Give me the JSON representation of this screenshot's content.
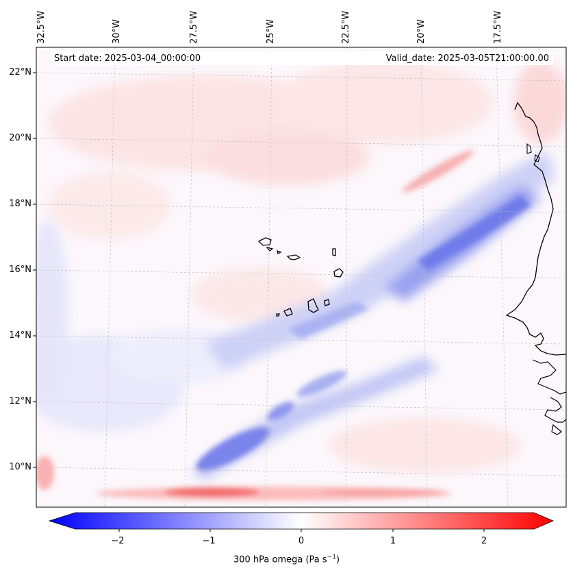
{
  "header": {
    "start_date": "Start date: 2025-03-04_00:00:00",
    "valid_date": "Valid_date: 2025-03-05T21:00:00.00"
  },
  "axes": {
    "top_lon_labels": [
      "32.5°W",
      "30°W",
      "27.5°W",
      "25°W",
      "22.5°W",
      "20°W",
      "17.5°W"
    ],
    "left_lat_labels": [
      "22°N",
      "20°N",
      "18°N",
      "16°N",
      "14°N",
      "12°N",
      "10°N"
    ]
  },
  "colorbar": {
    "ticks": [
      "−2",
      "−1",
      "0",
      "1",
      "2"
    ],
    "label_text": "300 hPa omega (Pa s",
    "label_exp": "−1",
    "label_close": ")",
    "vmin": -2.6,
    "vmax": 2.6,
    "colors": {
      "negative": "#0000ff",
      "zero": "#ffffff",
      "positive": "#ff0000"
    }
  },
  "map": {
    "field": "300 hPa omega",
    "region": "Cape Verde / West Africa coast",
    "coastline_color": "#000000"
  }
}
